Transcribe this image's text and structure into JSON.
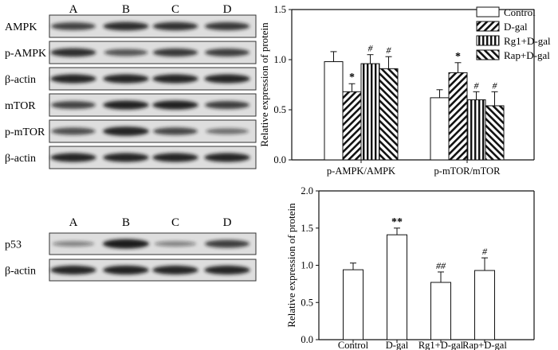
{
  "blots_top": {
    "lanes": [
      "A",
      "B",
      "C",
      "D"
    ],
    "rows": [
      {
        "label": "AMPK",
        "band_intensity": [
          0.72,
          0.85,
          0.82,
          0.78
        ]
      },
      {
        "label": "p-AMPK",
        "band_intensity": [
          0.85,
          0.6,
          0.78,
          0.75
        ]
      },
      {
        "label": "β-actin",
        "band_intensity": [
          0.9,
          0.9,
          0.9,
          0.9
        ]
      },
      {
        "label": "mTOR",
        "band_intensity": [
          0.72,
          0.92,
          0.92,
          0.75
        ]
      },
      {
        "label": "p-mTOR",
        "band_intensity": [
          0.65,
          0.95,
          0.7,
          0.45
        ]
      },
      {
        "label": "β-actin",
        "band_intensity": [
          0.9,
          0.9,
          0.9,
          0.9
        ]
      }
    ]
  },
  "blots_bottom": {
    "lanes": [
      "A",
      "B",
      "C",
      "D"
    ],
    "rows": [
      {
        "label": "p53",
        "band_intensity": [
          0.3,
          1.0,
          0.3,
          0.75
        ]
      },
      {
        "label": "β-actin",
        "band_intensity": [
          0.9,
          0.92,
          0.9,
          0.9
        ]
      }
    ]
  },
  "colors": {
    "axis": "#111111",
    "bar_fill": "#ffffff",
    "hatch": "#111111",
    "blot_bg": "#dedede",
    "band": "#1a1a1a"
  },
  "chart_data": [
    {
      "type": "bar",
      "ylabel": "Relative expression of protein",
      "ylim": [
        0,
        1.5
      ],
      "yticks": [
        "0.0",
        "0.5",
        "1.0",
        "1.5"
      ],
      "categories": [
        "p-AMPK/AMPK",
        "p-mTOR/mTOR"
      ],
      "legend_position": "top-right",
      "series": [
        {
          "name": "Control",
          "pattern": "none",
          "values": [
            0.98,
            0.62
          ],
          "errors": [
            0.1,
            0.08
          ],
          "marks": [
            "",
            ""
          ]
        },
        {
          "name": "D-gal",
          "pattern": "diag",
          "values": [
            0.68,
            0.87
          ],
          "errors": [
            0.08,
            0.1
          ],
          "marks": [
            "*",
            "*"
          ]
        },
        {
          "name": "Rg1+D-gal",
          "pattern": "vert",
          "values": [
            0.96,
            0.6
          ],
          "errors": [
            0.09,
            0.08
          ],
          "marks": [
            "#",
            "#"
          ]
        },
        {
          "name": "Rap+D-gal",
          "pattern": "antidiag",
          "values": [
            0.91,
            0.54
          ],
          "errors": [
            0.12,
            0.14
          ],
          "marks": [
            "#",
            "#"
          ]
        }
      ]
    },
    {
      "type": "bar",
      "ylabel": "Relative expression of protein",
      "ylim": [
        0,
        2.0
      ],
      "yticks": [
        "0.0",
        "0.5",
        "1.0",
        "1.5",
        "2.0"
      ],
      "categories": [
        "Control",
        "D-gal",
        "Rg1+D-gal",
        "Rap+D-gal"
      ],
      "values": [
        0.94,
        1.41,
        0.77,
        0.93
      ],
      "errors": [
        0.09,
        0.09,
        0.14,
        0.17
      ],
      "marks": [
        "",
        "**",
        "##",
        "#"
      ]
    }
  ]
}
